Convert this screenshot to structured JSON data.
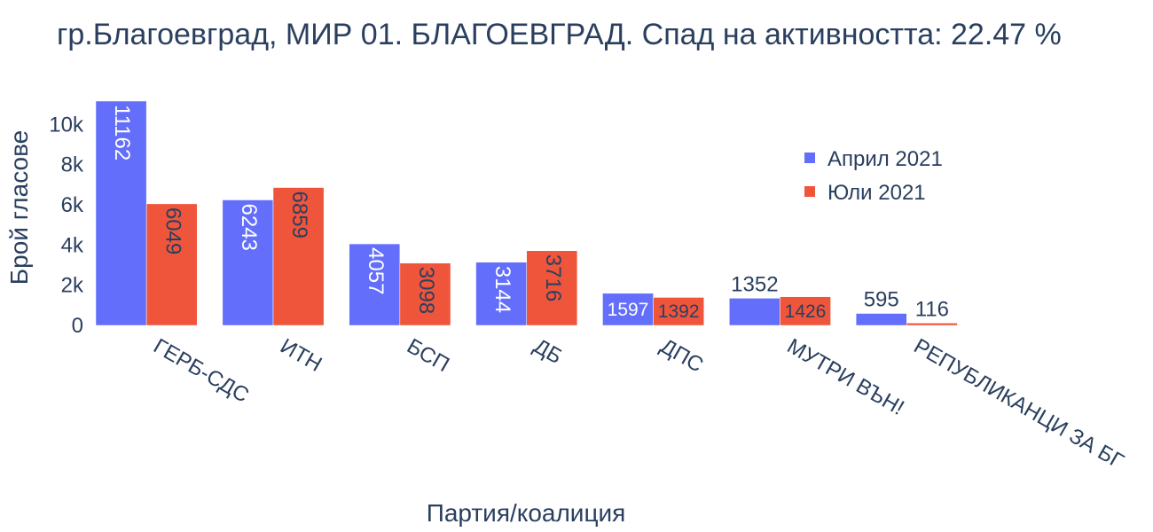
{
  "chart_data": {
    "type": "bar",
    "title": "гр.Благоевград, МИР 01. БЛАГОЕВГРАД. Спад на активността: 22.47 %",
    "xlabel": "Партия/коалиция",
    "ylabel": "Брой гласове",
    "categories": [
      "ГЕРБ-СДС",
      "ИТН",
      "БСП",
      "ДБ",
      "ДПС",
      "МУТРИ ВЪН!",
      "РЕПУБЛИКАНЦИ ЗА БГ"
    ],
    "series": [
      {
        "name": "Април 2021",
        "color": "#636efa",
        "values": [
          11162,
          6243,
          4057,
          3144,
          1597,
          1352,
          595
        ]
      },
      {
        "name": "Юли 2021",
        "color": "#ef553b",
        "values": [
          6049,
          6859,
          3098,
          3716,
          1392,
          1426,
          116
        ]
      }
    ],
    "yticks": [
      "0",
      "2k",
      "4k",
      "6k",
      "8k",
      "10k"
    ],
    "ylim": [
      0,
      11162
    ],
    "legend_position": "top-right",
    "grid": false
  }
}
